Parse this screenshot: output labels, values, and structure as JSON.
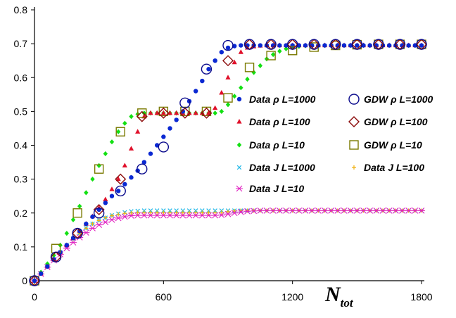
{
  "chart_data": {
    "type": "scatter",
    "xlabel_main": "N",
    "xlabel_sub": "tot",
    "ylabel": "",
    "xlim": [
      0,
      1800
    ],
    "ylim": [
      0,
      0.8
    ],
    "xticks": [
      "0",
      "600",
      "1200",
      "1800"
    ],
    "yticks": [
      "0",
      "0.1",
      "0.2",
      "0.3",
      "0.4",
      "0.5",
      "0.6",
      "0.7",
      "0.8"
    ],
    "grid": false,
    "legend_position": "center-right",
    "series": [
      {
        "name": "Data ρ L=1000",
        "marker": "dot",
        "color": "#0a28d2",
        "x": [
          0,
          30,
          60,
          90,
          120,
          150,
          180,
          210,
          240,
          270,
          300,
          330,
          360,
          390,
          420,
          450,
          480,
          510,
          540,
          570,
          600,
          630,
          660,
          690,
          720,
          750,
          780,
          810,
          840,
          870,
          900,
          930,
          960,
          990,
          1020,
          1050,
          1080,
          1110,
          1140,
          1170,
          1200,
          1230,
          1260,
          1290,
          1320,
          1350,
          1380,
          1410,
          1440,
          1470,
          1500,
          1530,
          1560,
          1590,
          1620,
          1650,
          1680,
          1710,
          1740,
          1770,
          1800
        ],
        "y": [
          0,
          0.021,
          0.042,
          0.063,
          0.084,
          0.105,
          0.126,
          0.147,
          0.168,
          0.189,
          0.21,
          0.23,
          0.25,
          0.265,
          0.285,
          0.305,
          0.325,
          0.35,
          0.375,
          0.4,
          0.425,
          0.45,
          0.475,
          0.5,
          0.53,
          0.56,
          0.59,
          0.625,
          0.65,
          0.675,
          0.688,
          0.693,
          0.695,
          0.695,
          0.695,
          0.695,
          0.695,
          0.695,
          0.695,
          0.695,
          0.695,
          0.695,
          0.695,
          0.695,
          0.695,
          0.695,
          0.695,
          0.695,
          0.695,
          0.695,
          0.695,
          0.695,
          0.695,
          0.695,
          0.695,
          0.695,
          0.695,
          0.695,
          0.695,
          0.695,
          0.695
        ]
      },
      {
        "name": "Data ρ L=100",
        "marker": "triangle",
        "color": "#e0102a",
        "x": [
          0,
          30,
          60,
          90,
          120,
          150,
          180,
          210,
          240,
          270,
          300,
          330,
          360,
          390,
          420,
          450,
          480,
          510,
          540,
          570,
          600,
          630,
          660,
          690,
          720,
          750,
          780,
          810,
          840,
          870,
          900,
          930,
          960,
          990,
          1020,
          1050,
          1080,
          1110,
          1140,
          1170,
          1200,
          1230,
          1260,
          1290,
          1320,
          1350,
          1380,
          1410,
          1440,
          1470,
          1500,
          1530,
          1560,
          1590,
          1620,
          1650,
          1680,
          1710,
          1740,
          1770,
          1800
        ],
        "y": [
          0,
          0.021,
          0.042,
          0.063,
          0.084,
          0.105,
          0.126,
          0.147,
          0.168,
          0.19,
          0.215,
          0.24,
          0.27,
          0.3,
          0.34,
          0.39,
          0.44,
          0.485,
          0.495,
          0.495,
          0.495,
          0.495,
          0.495,
          0.495,
          0.495,
          0.495,
          0.495,
          0.495,
          0.51,
          0.555,
          0.6,
          0.645,
          0.675,
          0.688,
          0.692,
          0.694,
          0.695,
          0.695,
          0.695,
          0.695,
          0.695,
          0.695,
          0.695,
          0.695,
          0.695,
          0.695,
          0.695,
          0.695,
          0.695,
          0.695,
          0.695,
          0.695,
          0.695,
          0.695,
          0.695,
          0.695,
          0.695,
          0.695,
          0.695,
          0.695,
          0.695
        ]
      },
      {
        "name": "Data ρ L=10",
        "marker": "diamond",
        "color": "#12e012",
        "x": [
          0,
          30,
          60,
          90,
          120,
          150,
          180,
          210,
          240,
          270,
          300,
          330,
          360,
          390,
          420,
          450,
          480,
          510,
          540,
          570,
          600,
          630,
          660,
          690,
          720,
          750,
          780,
          810,
          840,
          870,
          900,
          930,
          960,
          990,
          1020,
          1050,
          1080,
          1110,
          1140,
          1170,
          1200,
          1230,
          1260,
          1290,
          1320,
          1350,
          1380,
          1410,
          1440,
          1470,
          1500,
          1530,
          1560,
          1590,
          1620,
          1650,
          1680,
          1710,
          1740,
          1770,
          1800
        ],
        "y": [
          0,
          0.025,
          0.05,
          0.075,
          0.105,
          0.14,
          0.18,
          0.22,
          0.26,
          0.3,
          0.34,
          0.375,
          0.41,
          0.44,
          0.465,
          0.485,
          0.492,
          0.495,
          0.495,
          0.495,
          0.495,
          0.495,
          0.495,
          0.495,
          0.495,
          0.495,
          0.495,
          0.495,
          0.495,
          0.5,
          0.52,
          0.545,
          0.57,
          0.595,
          0.615,
          0.635,
          0.655,
          0.668,
          0.678,
          0.685,
          0.69,
          0.692,
          0.694,
          0.695,
          0.695,
          0.695,
          0.695,
          0.695,
          0.695,
          0.695,
          0.695,
          0.695,
          0.695,
          0.695,
          0.695,
          0.695,
          0.695,
          0.695,
          0.695,
          0.695,
          0.695
        ]
      },
      {
        "name": "GDW ρ L=1000",
        "marker": "circle",
        "color": "#0a0a8c",
        "x": [
          0,
          100,
          200,
          300,
          400,
          500,
          600,
          700,
          800,
          900,
          1000,
          1100,
          1200,
          1300,
          1400,
          1500,
          1600,
          1700,
          1800
        ],
        "y": [
          0,
          0.07,
          0.14,
          0.2,
          0.265,
          0.33,
          0.395,
          0.525,
          0.625,
          0.695,
          0.698,
          0.698,
          0.698,
          0.698,
          0.698,
          0.698,
          0.698,
          0.698,
          0.698
        ]
      },
      {
        "name": "GDW ρ L=100",
        "marker": "open-diamond",
        "color": "#8b0a0a",
        "x": [
          0,
          100,
          200,
          300,
          400,
          500,
          600,
          700,
          800,
          900,
          1000,
          1100,
          1200,
          1300,
          1400,
          1500,
          1600,
          1700,
          1800
        ],
        "y": [
          0,
          0.07,
          0.14,
          0.21,
          0.3,
          0.485,
          0.495,
          0.495,
          0.495,
          0.65,
          0.698,
          0.698,
          0.698,
          0.698,
          0.698,
          0.698,
          0.698,
          0.698,
          0.698
        ]
      },
      {
        "name": "GDW ρ L=10",
        "marker": "square",
        "color": "#7a7a00",
        "x": [
          0,
          100,
          200,
          300,
          400,
          500,
          600,
          700,
          800,
          900,
          1000,
          1100,
          1200,
          1300,
          1400,
          1500,
          1600,
          1700,
          1800
        ],
        "y": [
          0,
          0.095,
          0.2,
          0.33,
          0.44,
          0.495,
          0.5,
          0.5,
          0.5,
          0.54,
          0.63,
          0.665,
          0.68,
          0.69,
          0.695,
          0.697,
          0.698,
          0.698,
          0.698
        ]
      },
      {
        "name": "Data J L=1000",
        "marker": "x",
        "color": "#20b8e8",
        "x": [
          0,
          30,
          60,
          90,
          120,
          150,
          180,
          210,
          240,
          270,
          300,
          330,
          360,
          390,
          420,
          450,
          480,
          510,
          540,
          570,
          600,
          630,
          660,
          690,
          720,
          750,
          780,
          810,
          840,
          870,
          900,
          930,
          960,
          990,
          1020,
          1050,
          1080,
          1110,
          1140,
          1170,
          1200,
          1230,
          1260,
          1290,
          1320,
          1350,
          1380,
          1410,
          1440,
          1470,
          1500,
          1530,
          1560,
          1590,
          1620,
          1650,
          1680,
          1710,
          1740,
          1770,
          1800
        ],
        "y": [
          0,
          0.021,
          0.042,
          0.063,
          0.084,
          0.105,
          0.124,
          0.14,
          0.155,
          0.168,
          0.178,
          0.186,
          0.193,
          0.198,
          0.202,
          0.205,
          0.206,
          0.207,
          0.207,
          0.207,
          0.207,
          0.207,
          0.207,
          0.207,
          0.207,
          0.207,
          0.207,
          0.207,
          0.207,
          0.207,
          0.207,
          0.207,
          0.207,
          0.207,
          0.207,
          0.207,
          0.207,
          0.207,
          0.207,
          0.207,
          0.207,
          0.207,
          0.207,
          0.207,
          0.207,
          0.207,
          0.207,
          0.207,
          0.207,
          0.207,
          0.207,
          0.207,
          0.207,
          0.207,
          0.207,
          0.207,
          0.207,
          0.207,
          0.207,
          0.207,
          0.207
        ]
      },
      {
        "name": "Data J L=100",
        "marker": "plus",
        "color": "#f0b010",
        "x": [
          0,
          30,
          60,
          90,
          120,
          150,
          180,
          210,
          240,
          270,
          300,
          330,
          360,
          390,
          420,
          450,
          480,
          510,
          540,
          570,
          600,
          630,
          660,
          690,
          720,
          750,
          780,
          810,
          840,
          870,
          900,
          930,
          960,
          990,
          1020,
          1050,
          1080,
          1110,
          1140,
          1170,
          1200,
          1230,
          1260,
          1290,
          1320,
          1350,
          1380,
          1410,
          1440,
          1470,
          1500,
          1530,
          1560,
          1590,
          1620,
          1650,
          1680,
          1710,
          1740,
          1770,
          1800
        ],
        "y": [
          0,
          0.021,
          0.042,
          0.063,
          0.084,
          0.105,
          0.124,
          0.14,
          0.155,
          0.168,
          0.178,
          0.186,
          0.192,
          0.196,
          0.199,
          0.2,
          0.201,
          0.201,
          0.201,
          0.201,
          0.201,
          0.201,
          0.201,
          0.201,
          0.201,
          0.201,
          0.201,
          0.201,
          0.201,
          0.202,
          0.204,
          0.206,
          0.207,
          0.207,
          0.207,
          0.207,
          0.207,
          0.207,
          0.207,
          0.207,
          0.207,
          0.207,
          0.207,
          0.207,
          0.207,
          0.207,
          0.207,
          0.207,
          0.207,
          0.207,
          0.207,
          0.207,
          0.207,
          0.207,
          0.207,
          0.207,
          0.207,
          0.207,
          0.207,
          0.207,
          0.207
        ]
      },
      {
        "name": "Data J L=10",
        "marker": "asterisk",
        "color": "#e020c0",
        "x": [
          0,
          30,
          60,
          90,
          120,
          150,
          180,
          210,
          240,
          270,
          300,
          330,
          360,
          390,
          420,
          450,
          480,
          510,
          540,
          570,
          600,
          630,
          660,
          690,
          720,
          750,
          780,
          810,
          840,
          870,
          900,
          930,
          960,
          990,
          1020,
          1050,
          1080,
          1110,
          1140,
          1170,
          1200,
          1230,
          1260,
          1290,
          1320,
          1350,
          1380,
          1410,
          1440,
          1470,
          1500,
          1530,
          1560,
          1590,
          1620,
          1650,
          1680,
          1710,
          1740,
          1770,
          1800
        ],
        "y": [
          0,
          0.02,
          0.04,
          0.06,
          0.078,
          0.096,
          0.113,
          0.128,
          0.142,
          0.155,
          0.165,
          0.173,
          0.18,
          0.185,
          0.189,
          0.192,
          0.193,
          0.193,
          0.193,
          0.193,
          0.193,
          0.193,
          0.193,
          0.193,
          0.193,
          0.193,
          0.193,
          0.193,
          0.193,
          0.194,
          0.197,
          0.2,
          0.203,
          0.205,
          0.206,
          0.207,
          0.207,
          0.207,
          0.207,
          0.207,
          0.207,
          0.207,
          0.207,
          0.207,
          0.207,
          0.207,
          0.207,
          0.207,
          0.207,
          0.207,
          0.207,
          0.207,
          0.207,
          0.207,
          0.207,
          0.207,
          0.207,
          0.207,
          0.207,
          0.207,
          0.207
        ]
      }
    ]
  }
}
